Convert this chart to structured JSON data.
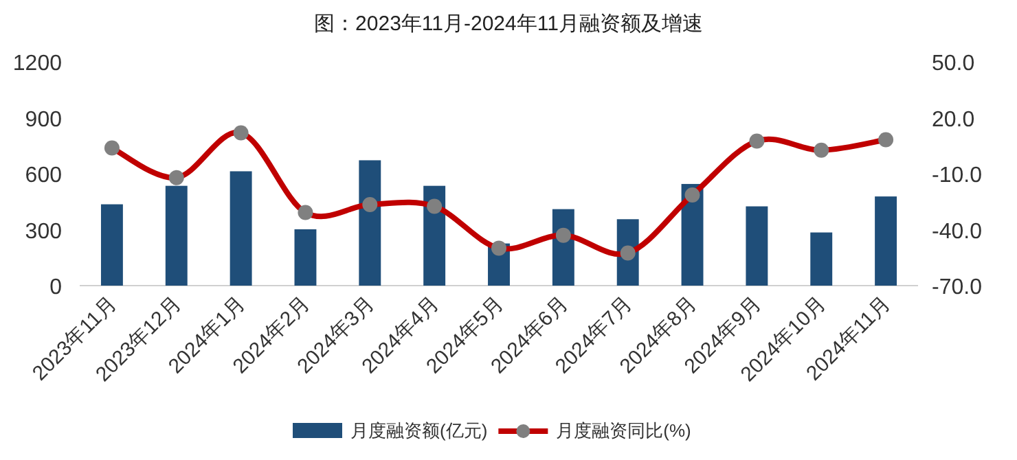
{
  "chart_data": {
    "type": "bar",
    "title": "图：2023年11月-2024年11月融资额及增速",
    "categories": [
      "2023年11月",
      "2023年12月",
      "2024年1月",
      "2024年2月",
      "2024年3月",
      "2024年4月",
      "2024年5月",
      "2024年6月",
      "2024年7月",
      "2024年8月",
      "2024年9月",
      "2024年10月",
      "2024年11月"
    ],
    "series": [
      {
        "name": "月度融资额(亿元)",
        "color": "#1f4e79",
        "values": [
          436,
          535,
          613,
          302,
          672,
          535,
          226,
          410,
          356,
          545,
          425,
          285,
          478
        ]
      },
      {
        "name": "月度融资同比(%)",
        "type": "line",
        "axis": "y2",
        "color": "#c00000",
        "values": [
          3.8,
          -12.1,
          11.9,
          -30.8,
          -26.6,
          -27.5,
          -49.9,
          -43,
          -52.5,
          -21.4,
          7.5,
          2.6,
          8.2
        ]
      }
    ],
    "ylim": [
      0,
      1200
    ],
    "yticks": [
      0,
      300,
      600,
      900,
      1200
    ],
    "y2lim": [
      -70,
      50
    ],
    "y2ticks": [
      {
        "value": -70,
        "label": "-70.0"
      },
      {
        "value": -40,
        "label": "-40.0"
      },
      {
        "value": -10,
        "label": "-10.0"
      },
      {
        "value": 20,
        "label": "20.0"
      },
      {
        "value": 50,
        "label": "50.0"
      }
    ],
    "marker": "circle",
    "legend": "bottom",
    "grid": false
  }
}
